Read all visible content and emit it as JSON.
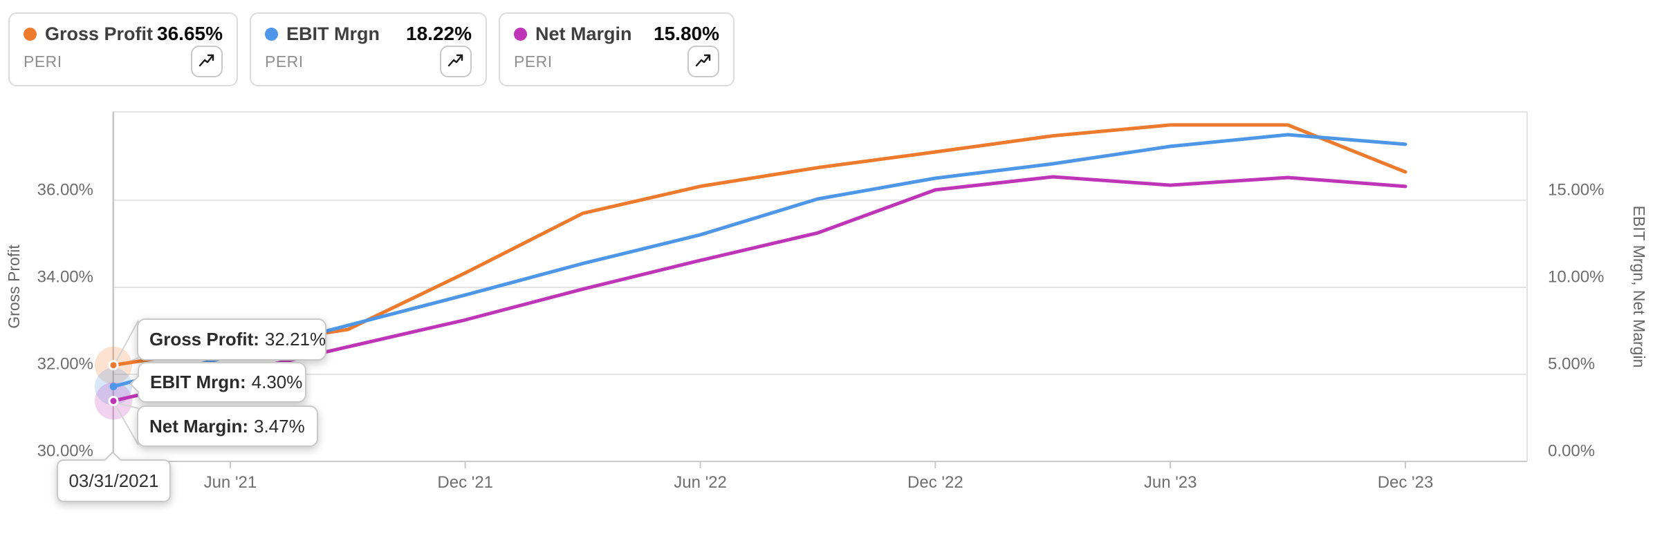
{
  "cards": [
    {
      "label": "Gross Profit",
      "value": "36.65%",
      "ticker": "PERI",
      "color": "#ee7a2e"
    },
    {
      "label": "EBIT Mrgn",
      "value": "18.22%",
      "ticker": "PERI",
      "color": "#4e97e8"
    },
    {
      "label": "Net Margin",
      "value": "15.80%",
      "ticker": "PERI",
      "color": "#bf35b7"
    }
  ],
  "tooltip": {
    "date": "03/31/2021",
    "items": [
      {
        "label": "Gross Profit:",
        "value": "32.21%"
      },
      {
        "label": "EBIT Mrgn:",
        "value": "4.30%"
      },
      {
        "label": "Net Margin:",
        "value": "3.47%"
      }
    ]
  },
  "colors": {
    "grid": "#e4e4e4",
    "axis_line": "#c9c9c9",
    "tick_text": "#6e6e6e",
    "axis_title": "#666666",
    "crosshair": "#c6c6c6",
    "connector": "#d4d4d4"
  },
  "chart_data": {
    "type": "line",
    "x": [
      "03/31/2021",
      "06/30/2021",
      "09/30/2021",
      "12/31/2021",
      "03/31/2022",
      "06/30/2022",
      "09/30/2022",
      "12/31/2022",
      "03/31/2023",
      "06/30/2023",
      "09/30/2023",
      "12/31/2023"
    ],
    "x_tick_labels": [
      {
        "label": "Jun '21",
        "index": 1
      },
      {
        "label": "Dec '21",
        "index": 3
      },
      {
        "label": "Jun '22",
        "index": 5
      },
      {
        "label": "Dec '22",
        "index": 7
      },
      {
        "label": "Jun '23",
        "index": 9
      },
      {
        "label": "Dec '23",
        "index": 11
      }
    ],
    "left_axis": {
      "title": "Gross Profit",
      "tick_labels": [
        "36.00%",
        "34.00%",
        "32.00%",
        "30.00%"
      ],
      "tick_values": [
        36,
        34,
        32,
        30
      ],
      "range": [
        30,
        38.03
      ]
    },
    "right_axis": {
      "title": "EBIT Mrgn, Net Margin",
      "tick_labels": [
        "15.00%",
        "10.00%",
        "5.00%",
        "0.00%"
      ],
      "tick_values": [
        15,
        10,
        5,
        0
      ],
      "range": [
        0,
        20.08
      ]
    },
    "grid": true,
    "highlight_index": 0,
    "series": [
      {
        "name": "Gross Profit",
        "axis": "left",
        "color": "#ee7a2e",
        "marker": "ring",
        "values": [
          32.21,
          32.62,
          33.03,
          34.33,
          35.7,
          36.32,
          36.75,
          37.11,
          37.48,
          37.73,
          37.73,
          36.65
        ]
      },
      {
        "name": "EBIT Mrgn",
        "axis": "right",
        "color": "#4e97e8",
        "marker": "solid",
        "values": [
          4.3,
          6.05,
          7.81,
          9.56,
          11.37,
          13.02,
          15.08,
          16.27,
          17.1,
          18.1,
          18.77,
          18.22
        ]
      },
      {
        "name": "Net Margin",
        "axis": "right",
        "color": "#bf35b7",
        "marker": "ring",
        "values": [
          3.47,
          5.02,
          6.58,
          8.13,
          9.9,
          11.55,
          13.13,
          15.6,
          16.35,
          15.87,
          16.31,
          15.8
        ]
      }
    ]
  }
}
